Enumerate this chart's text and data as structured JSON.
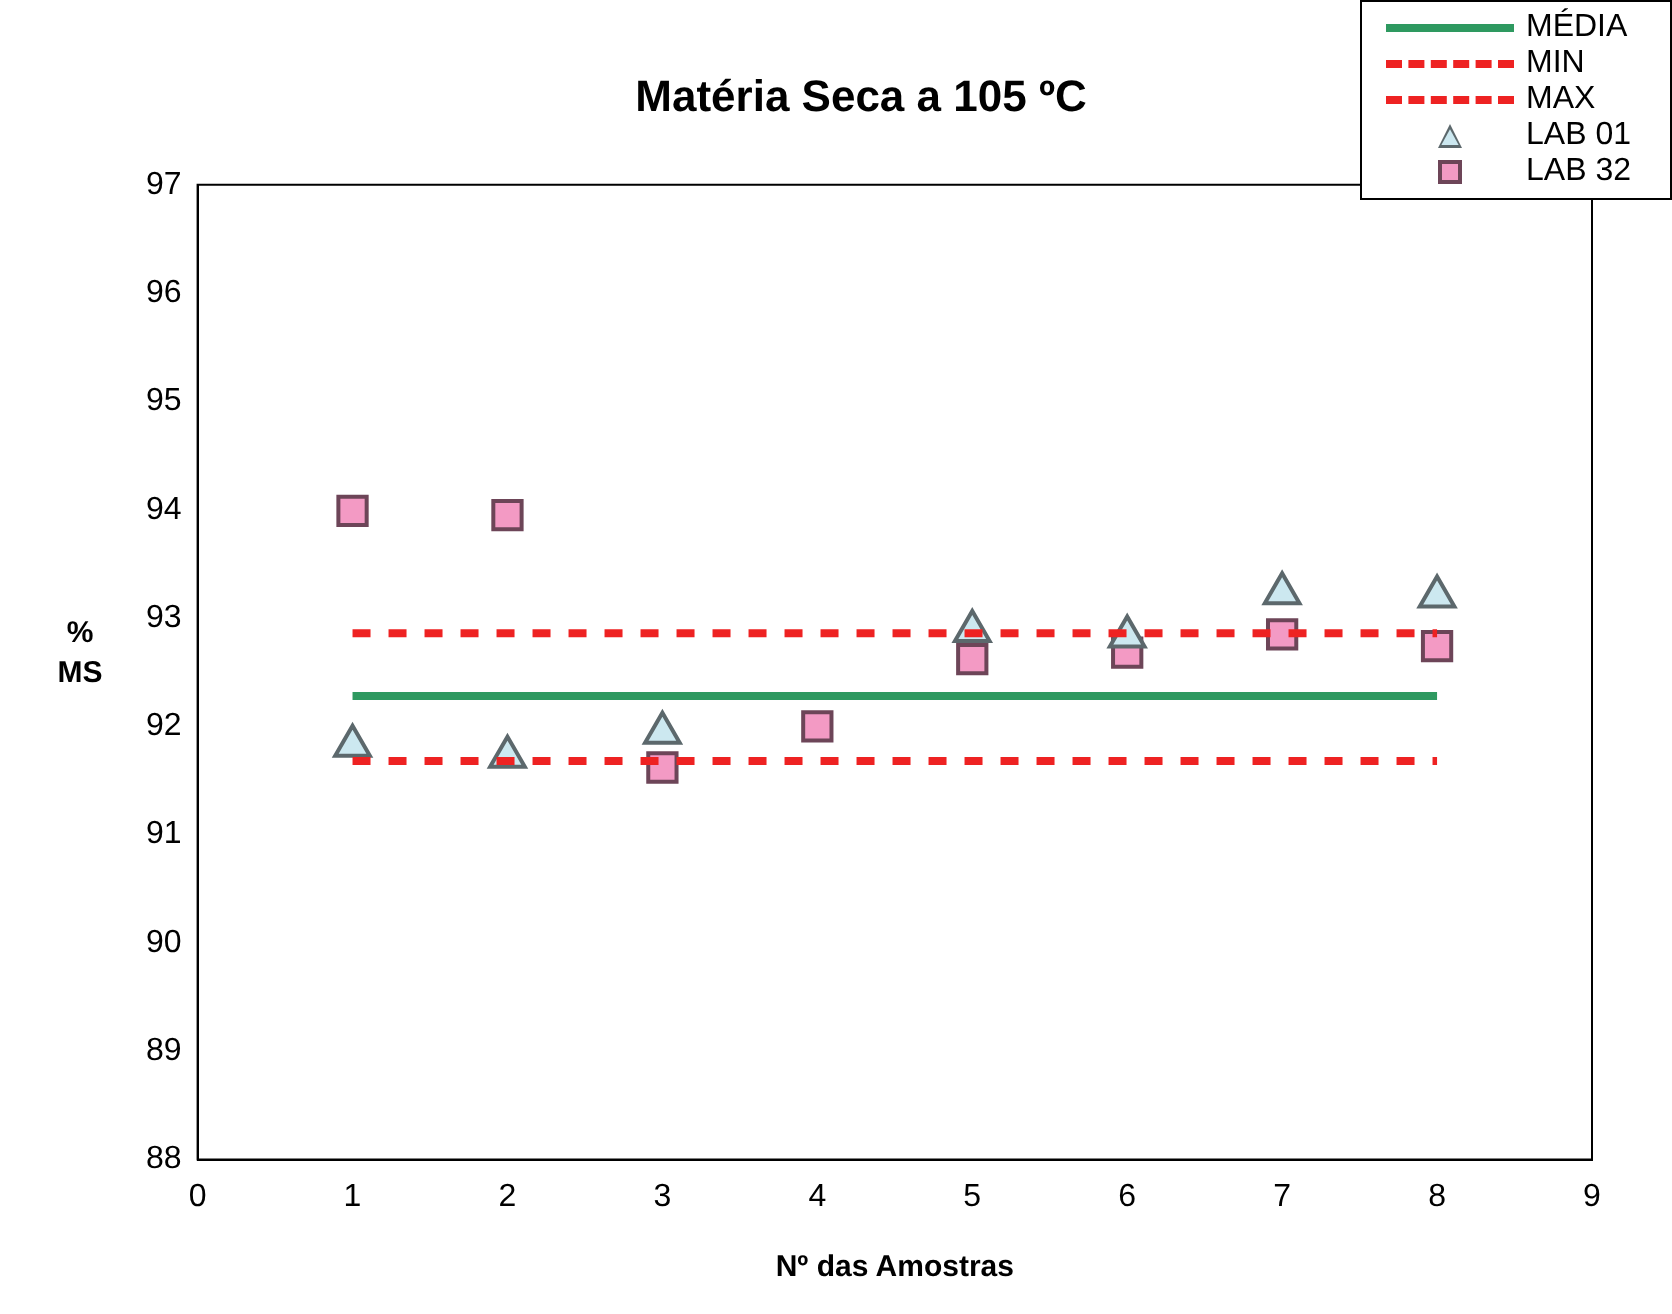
{
  "chart_data": {
    "type": "scatter",
    "title": "Matéria Seca a 105 ºC",
    "xlabel": "Nº das Amostras",
    "ylabel": "% MS",
    "xlim": [
      0,
      9
    ],
    "xticks": [
      0,
      1,
      2,
      3,
      4,
      5,
      6,
      7,
      8,
      9
    ],
    "ylim": [
      88,
      97
    ],
    "yticks": [
      88,
      89,
      90,
      91,
      92,
      93,
      94,
      95,
      96,
      97
    ],
    "grid": false,
    "legend": "top right",
    "series": [
      {
        "name": "MÉDIA",
        "type": "line",
        "color": "#2e9960",
        "line_style": "solid",
        "marker": "none",
        "x": [
          1,
          8
        ],
        "values": [
          92.28,
          92.28
        ]
      },
      {
        "name": "MIN",
        "type": "line",
        "color": "#ee2222",
        "line_style": "dotted",
        "marker": "none",
        "x": [
          1,
          8
        ],
        "values": [
          91.68,
          91.68
        ]
      },
      {
        "name": "MAX",
        "type": "line",
        "color": "#ee2222",
        "line_style": "dotted",
        "marker": "none",
        "x": [
          1,
          8
        ],
        "values": [
          92.86,
          92.86
        ]
      },
      {
        "name": "LAB 01",
        "type": "scatter",
        "color": "#cce8f0",
        "marker": "triangle",
        "x": [
          1,
          2,
          3,
          4,
          5,
          6,
          7,
          8
        ],
        "values": [
          91.82,
          91.72,
          91.94,
          null,
          92.88,
          92.83,
          93.23,
          93.2
        ]
      },
      {
        "name": "LAB 32",
        "type": "scatter",
        "color": "#f39ac4",
        "marker": "square",
        "x": [
          1,
          2,
          3,
          4,
          5,
          6,
          7,
          8
        ],
        "values": [
          93.99,
          93.95,
          91.62,
          92.0,
          92.62,
          92.68,
          92.85,
          92.74
        ]
      }
    ]
  }
}
